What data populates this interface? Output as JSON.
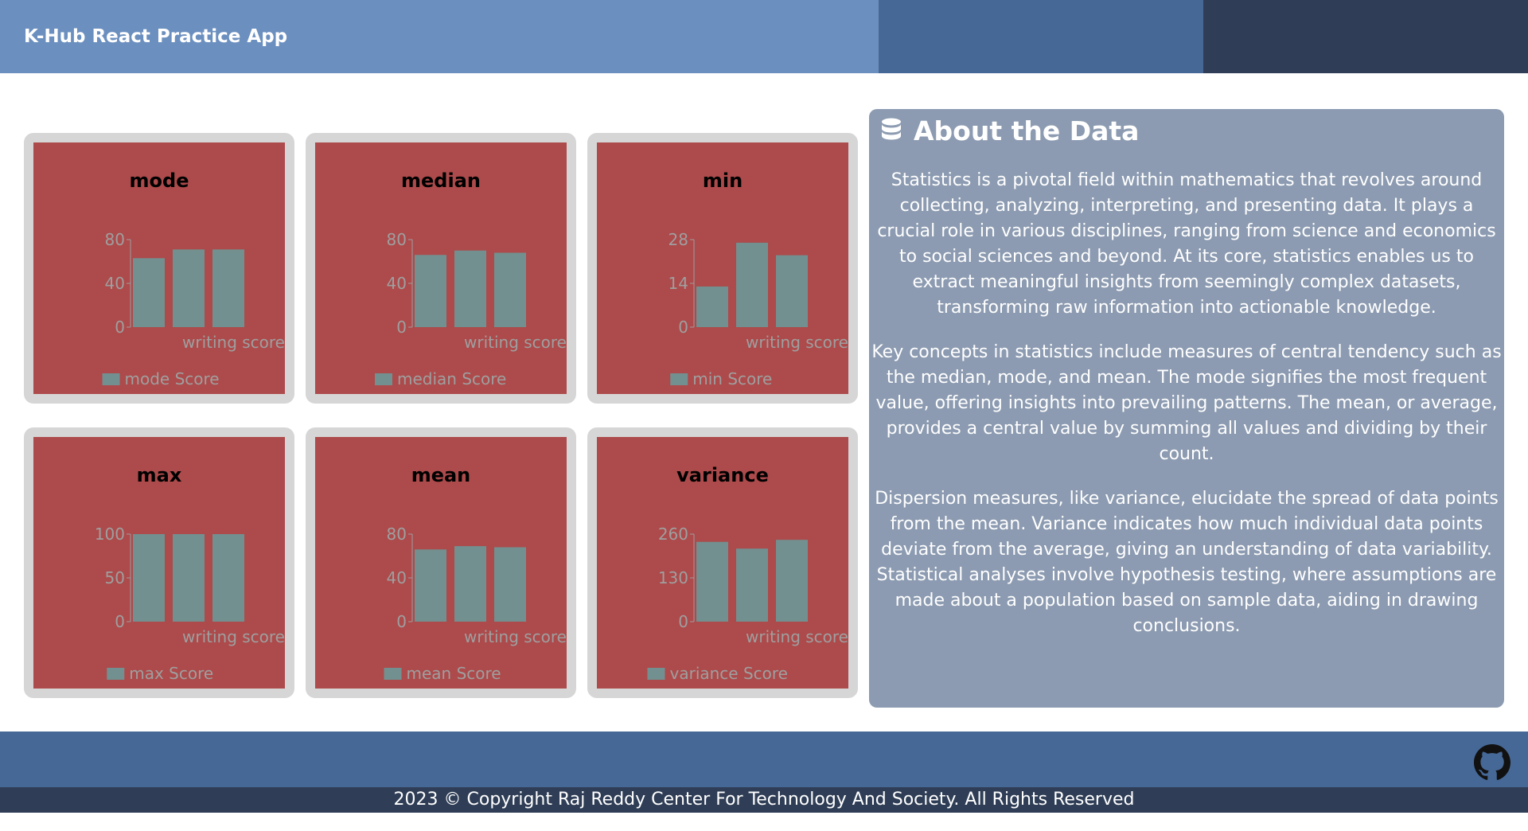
{
  "header": {
    "title": "K-Hub React Practice App"
  },
  "about": {
    "title": "About the Data",
    "icon": "database-icon",
    "paragraphs": [
      "Statistics is a pivotal field within mathematics that revolves around collecting, analyzing, interpreting, and presenting data. It plays a crucial role in various disciplines, ranging from science and economics to social sciences and beyond. At its core, statistics enables us to extract meaningful insights from seemingly complex datasets, transforming raw information into actionable knowledge.",
      "Key concepts in statistics include measures of central tendency such as the median, mode, and mean. The mode signifies the most frequent value, offering insights into prevailing patterns. The mean, or average, provides a central value by summing all values and dividing by their count.",
      "Dispersion measures, like variance, elucidate the spread of data points from the mean. Variance indicates how much individual data points deviate from the average, giving an understanding of data variability. Statistical analyses involve hypothesis testing, where assumptions are made about a population based on sample data, aiding in drawing conclusions."
    ]
  },
  "footer": {
    "copyright": "2023 © Copyright Raj Reddy Center For Technology And Society. All Rights Reserved",
    "icon": "github-icon"
  },
  "colors": {
    "bar": "#72908f",
    "card_bg": "#ad4a4b",
    "axis": "#9f9f9f"
  },
  "chart_data": [
    {
      "type": "bar",
      "title": "mode",
      "xlabel": "writing score",
      "legend": "mode Score",
      "ticks": [
        0,
        40,
        80
      ],
      "ylim": [
        0,
        80
      ],
      "values": [
        63,
        71,
        71
      ]
    },
    {
      "type": "bar",
      "title": "median",
      "xlabel": "writing score",
      "legend": "median Score",
      "ticks": [
        0,
        40,
        80
      ],
      "ylim": [
        0,
        80
      ],
      "values": [
        66,
        70,
        68
      ]
    },
    {
      "type": "bar",
      "title": "min",
      "xlabel": "writing score",
      "legend": "min Score",
      "ticks": [
        0,
        14,
        28
      ],
      "ylim": [
        0,
        28
      ],
      "values": [
        13,
        27,
        23
      ]
    },
    {
      "type": "bar",
      "title": "max",
      "xlabel": "writing score",
      "legend": "max Score",
      "ticks": [
        0,
        50,
        100
      ],
      "ylim": [
        0,
        100
      ],
      "values": [
        100,
        100,
        100
      ]
    },
    {
      "type": "bar",
      "title": "mean",
      "xlabel": "writing score",
      "legend": "mean Score",
      "ticks": [
        0,
        40,
        80
      ],
      "ylim": [
        0,
        80
      ],
      "values": [
        66,
        69,
        68
      ]
    },
    {
      "type": "bar",
      "title": "variance",
      "xlabel": "writing score",
      "legend": "variance Score",
      "ticks": [
        0,
        130,
        260
      ],
      "ylim": [
        0,
        260
      ],
      "values": [
        237,
        217,
        243
      ]
    }
  ]
}
